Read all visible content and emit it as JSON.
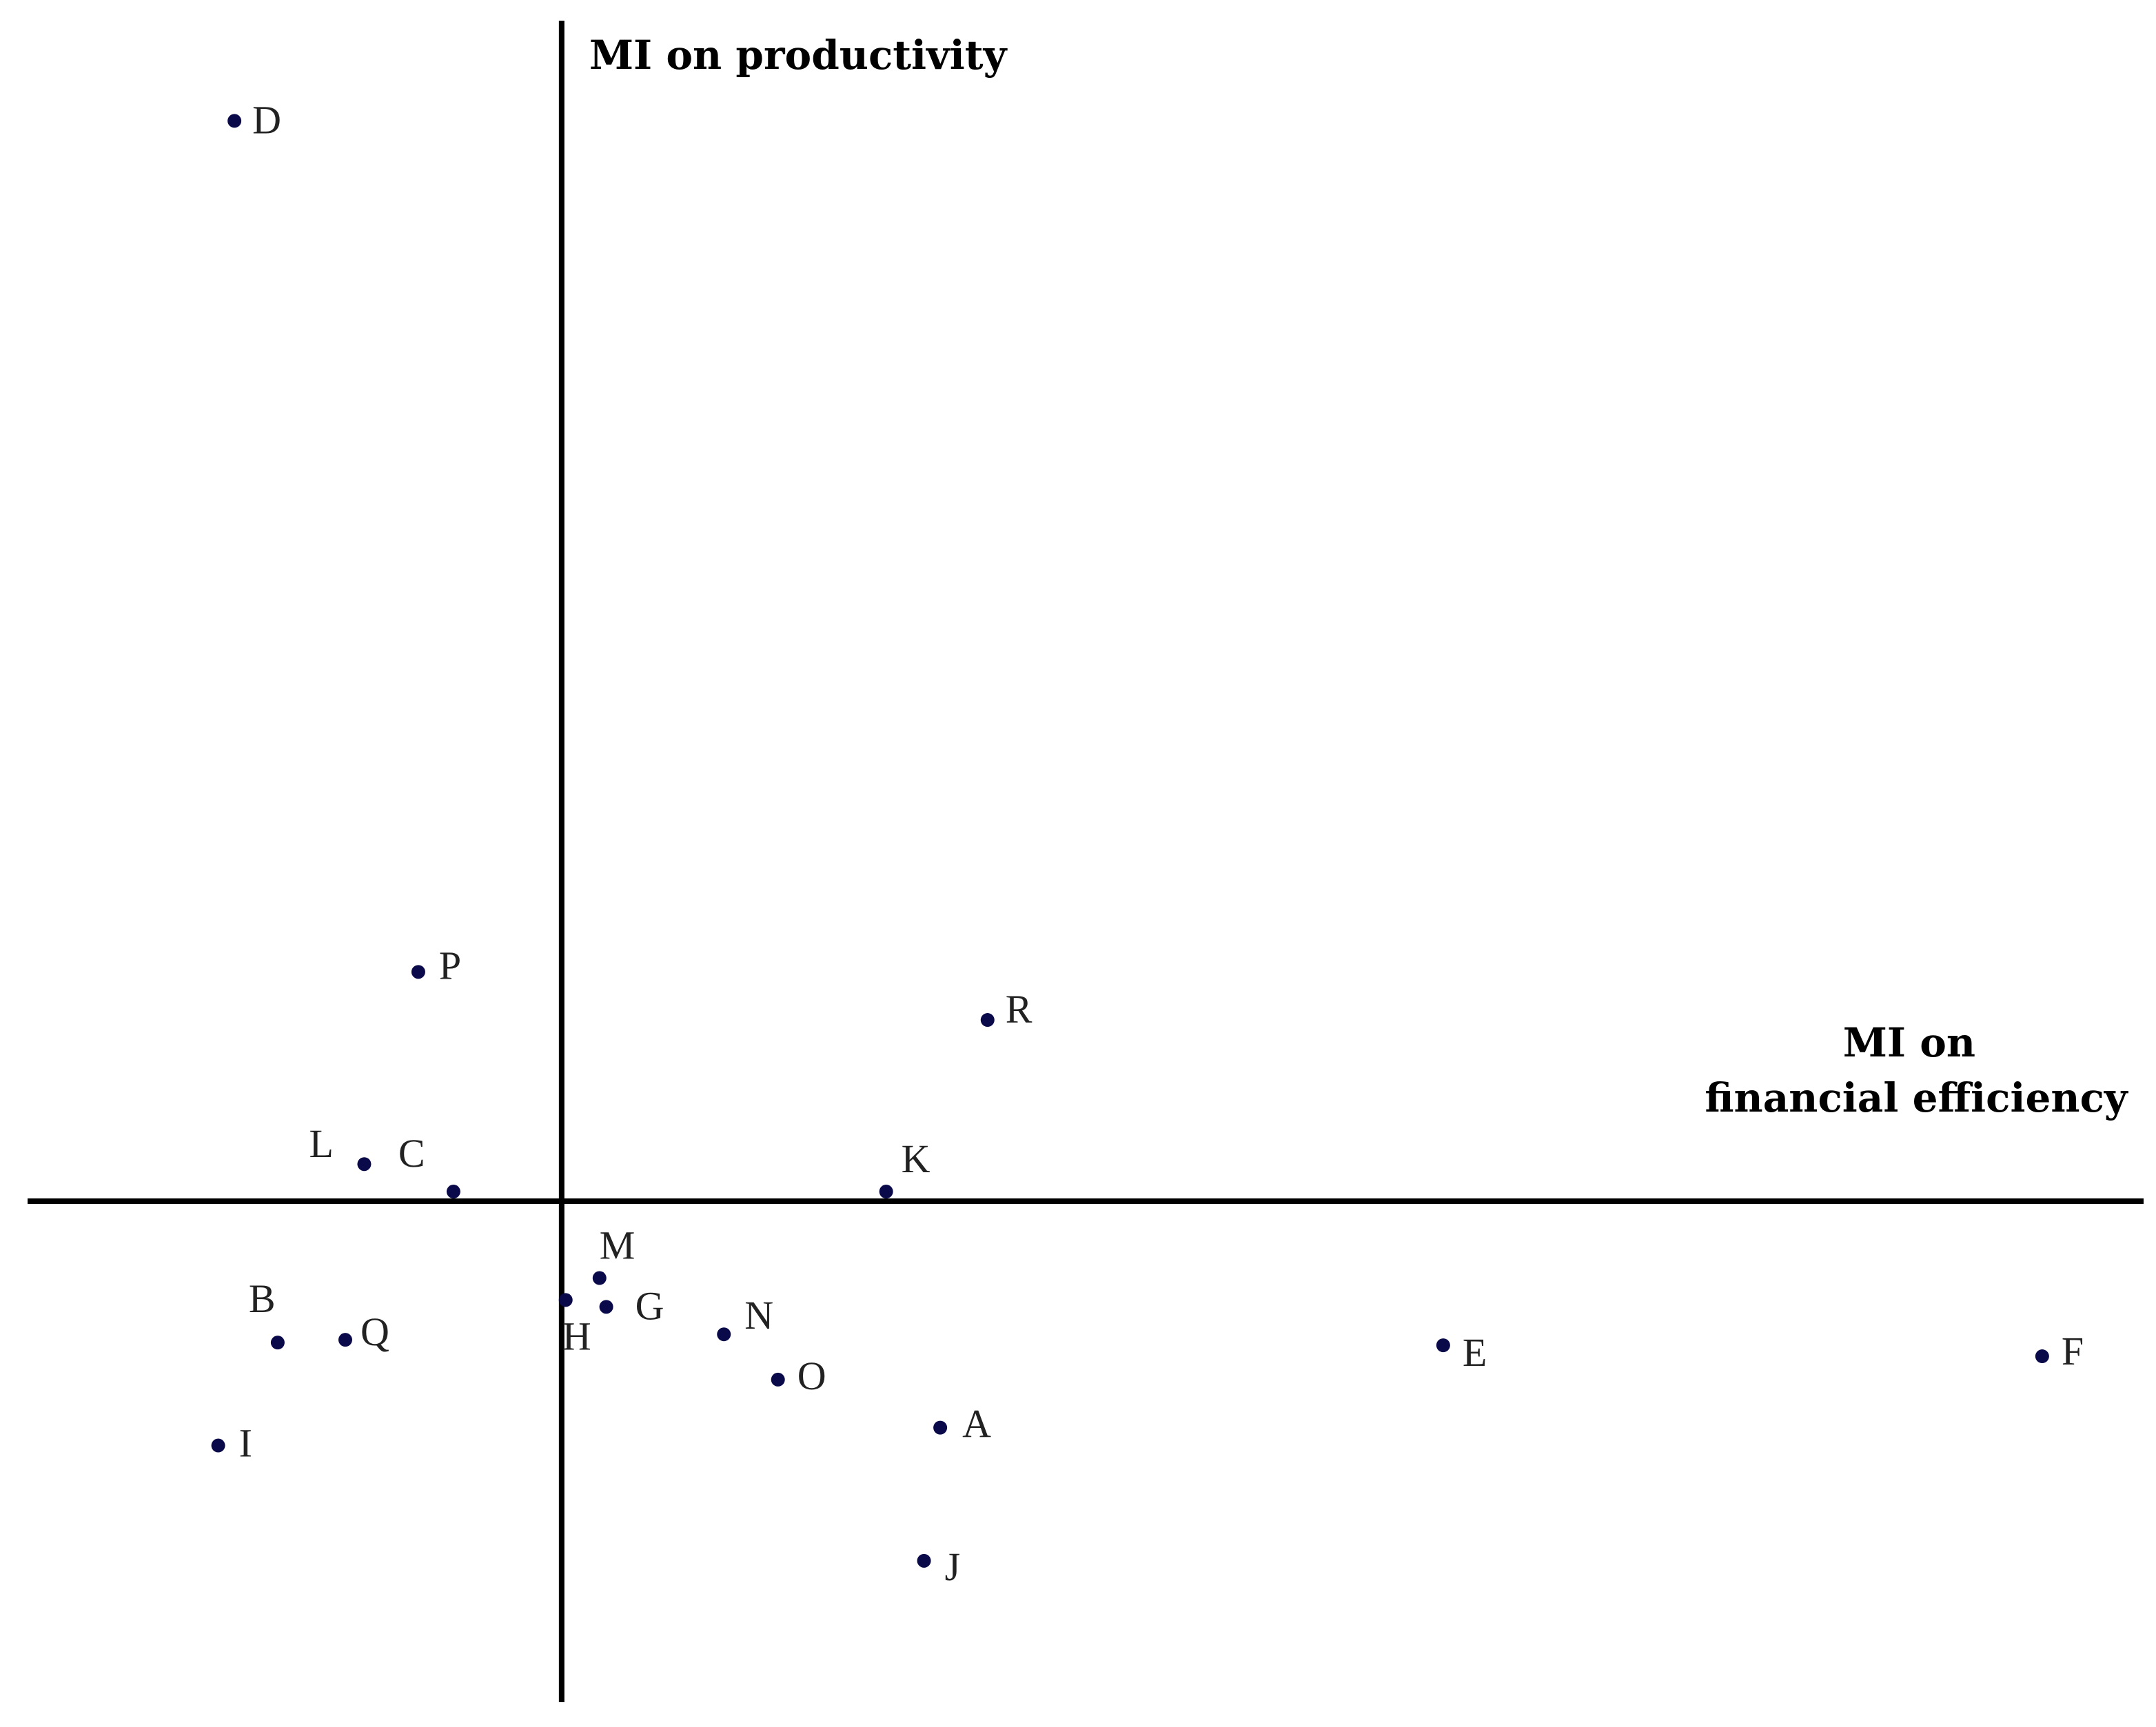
{
  "chart_data": {
    "type": "scatter",
    "title": "",
    "ylabel": "MI on productivity",
    "xlabel_lines": [
      "MI on",
      "financial efficiency"
    ],
    "grid": false,
    "legend": "none",
    "tick_labels": "none",
    "point_color": "#0a0a4a",
    "axis_color": "#000000",
    "xlim": [
      -3.95,
      11.7
    ],
    "ylim": [
      -3.65,
      8.6
    ],
    "points": [
      {
        "label": "A",
        "x": 2.8,
        "y": -1.65
      },
      {
        "label": "B",
        "x": -2.1,
        "y": -1.03
      },
      {
        "label": "C",
        "x": -0.8,
        "y": 0.07
      },
      {
        "label": "D",
        "x": -2.42,
        "y": 7.87
      },
      {
        "label": "E",
        "x": 6.52,
        "y": -1.05
      },
      {
        "label": "F",
        "x": 10.95,
        "y": -1.13
      },
      {
        "label": "G",
        "x": 0.33,
        "y": -0.77
      },
      {
        "label": "H",
        "x": 0.03,
        "y": -0.72
      },
      {
        "label": "I",
        "x": -2.54,
        "y": -1.78
      },
      {
        "label": "J",
        "x": 2.68,
        "y": -2.62
      },
      {
        "label": "K",
        "x": 2.4,
        "y": 0.07
      },
      {
        "label": "L",
        "x": -1.46,
        "y": 0.27
      },
      {
        "label": "M",
        "x": 0.28,
        "y": -0.56
      },
      {
        "label": "N",
        "x": 1.2,
        "y": -0.97
      },
      {
        "label": "O",
        "x": 1.6,
        "y": -1.3
      },
      {
        "label": "P",
        "x": -1.06,
        "y": 1.67
      },
      {
        "label": "Q",
        "x": -1.6,
        "y": -1.01
      },
      {
        "label": "R",
        "x": 3.15,
        "y": 1.32
      }
    ]
  }
}
